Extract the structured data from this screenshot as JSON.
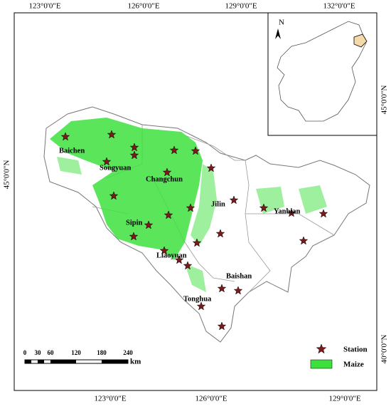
{
  "map": {
    "top_ticks": [
      "123°0'0\"E",
      "126°0'0\"E",
      "129°0'0\"E",
      "132°0'0\"E"
    ],
    "bottom_ticks": [
      "123°0'0\"E",
      "126°0'0\"E",
      "129°0'0\"E"
    ],
    "left_ticks": [
      "45°0'0\"N"
    ],
    "right_ticks": [
      "45°0'0\"N",
      "40°0'0\"N"
    ],
    "cities": [
      "Baichen",
      "Songyuan",
      "Changchun",
      "Jilin",
      "Yanbian",
      "Sipin",
      "Liaoyuan",
      "Baishan",
      "Tonghua"
    ],
    "north": "N",
    "scale": {
      "labels": [
        0,
        30,
        60,
        120,
        180,
        240
      ],
      "unit": "km"
    },
    "legend": [
      "Station",
      "Maize"
    ]
  }
}
